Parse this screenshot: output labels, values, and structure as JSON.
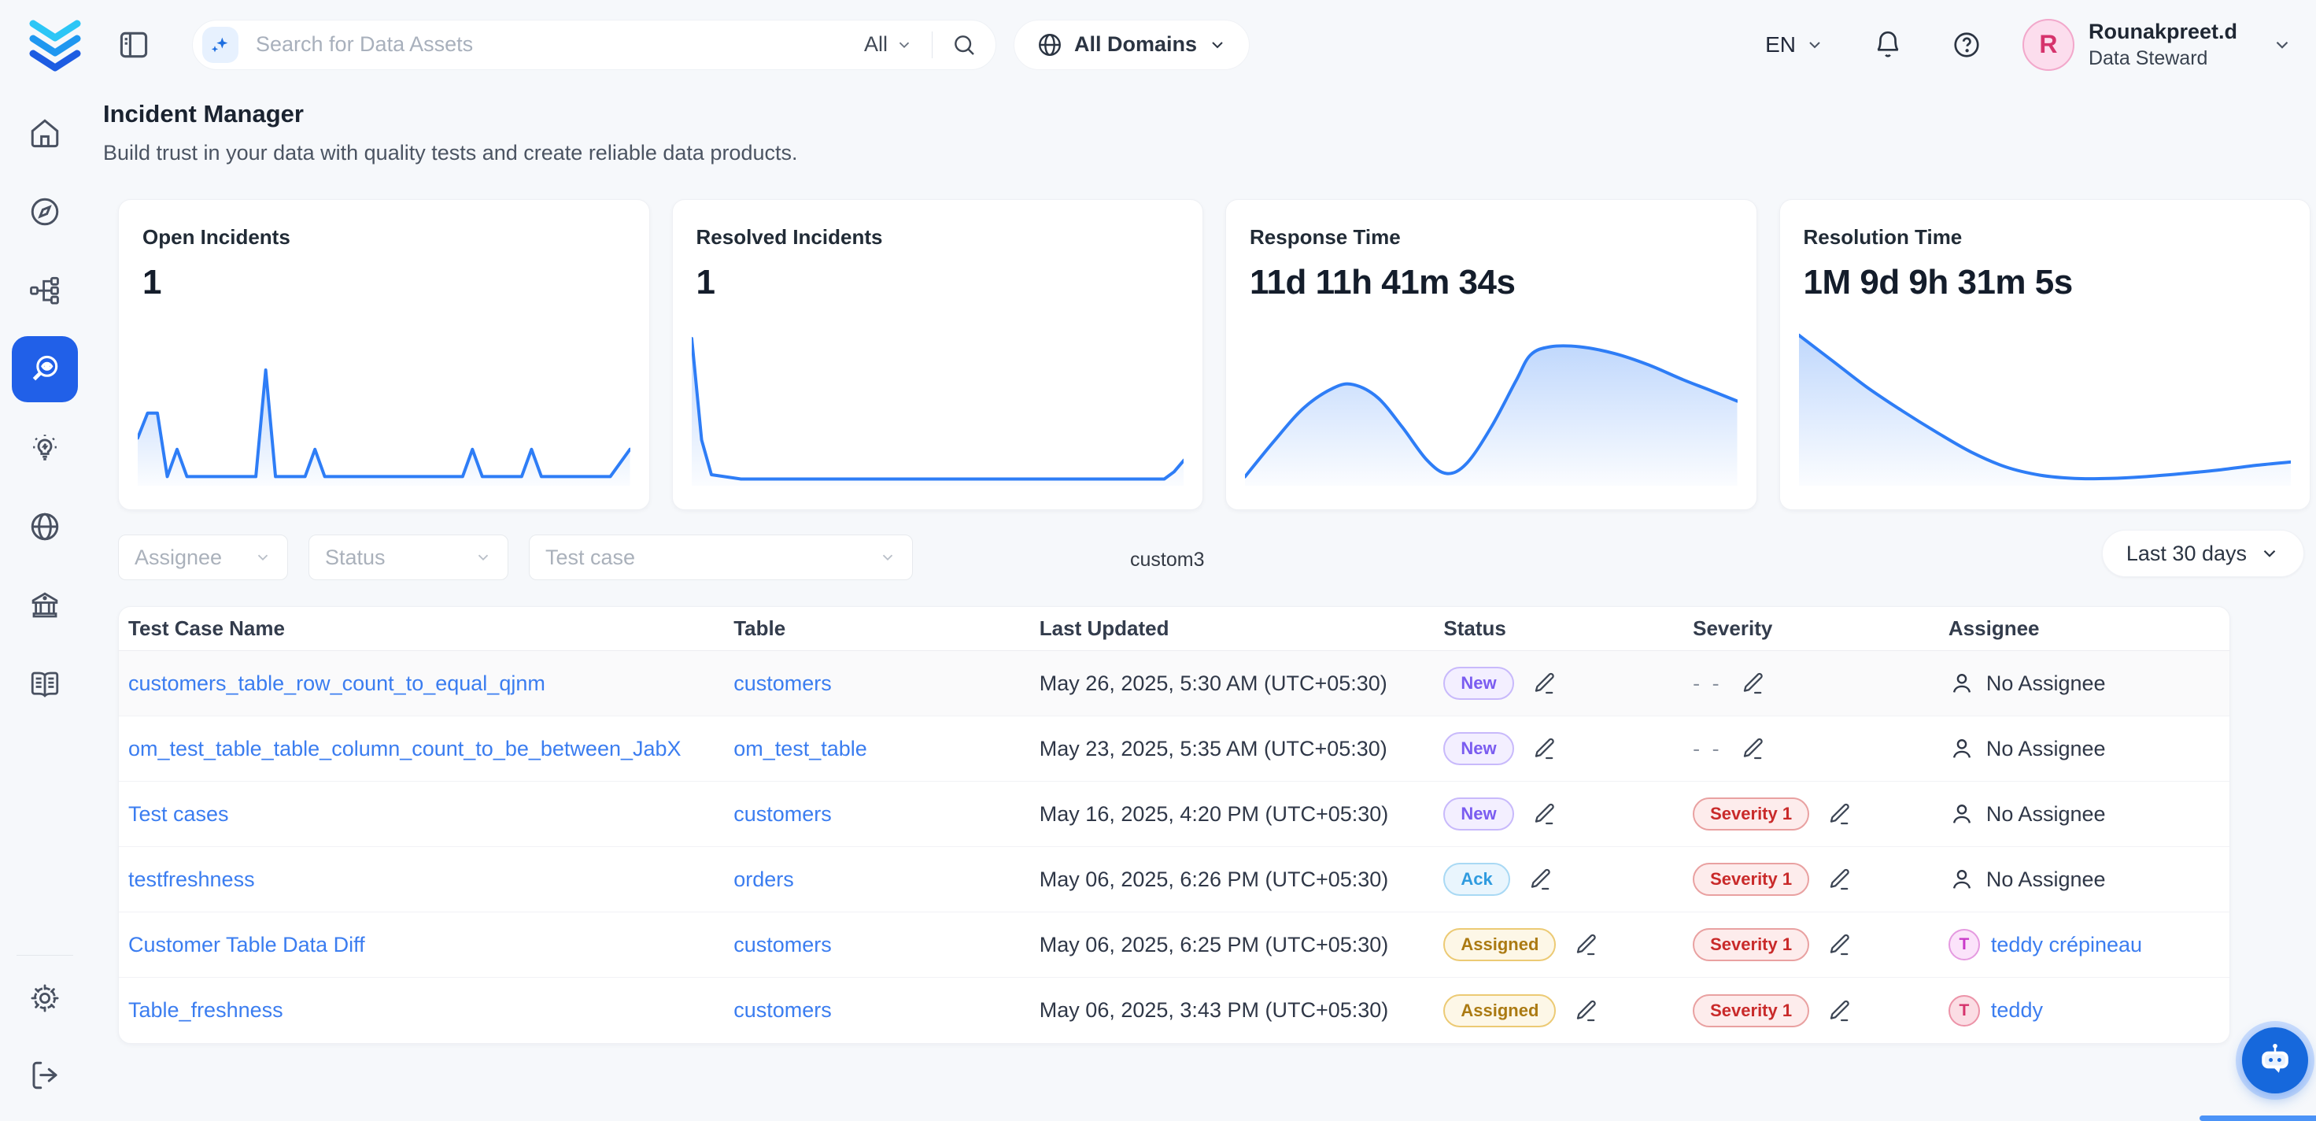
{
  "topbar": {
    "search": {
      "placeholder": "Search for Data Assets",
      "scope_label": "All"
    },
    "domains_button_label": "All Domains",
    "language_label": "EN",
    "user": {
      "initial": "R",
      "name": "Rounakpreet.d",
      "role": "Data Steward"
    }
  },
  "sidebar": {
    "items": [
      "home",
      "explore",
      "lineage",
      "observability",
      "insights",
      "domains",
      "governance",
      "glossary"
    ],
    "active_item": "observability",
    "footer_items": [
      "settings",
      "logout"
    ]
  },
  "page": {
    "title": "Incident Manager",
    "subtitle": "Build trust in your data with quality tests and create reliable data products."
  },
  "stat_cards": [
    {
      "label": "Open Incidents",
      "value": "1"
    },
    {
      "label": "Resolved Incidents",
      "value": "1"
    },
    {
      "label": "Response Time",
      "value": "11d 11h 41m 34s"
    },
    {
      "label": "Resolution Time",
      "value": "1M 9d 9h 31m 5s"
    }
  ],
  "chart_data": [
    {
      "type": "line",
      "title": "Open Incidents sparkline",
      "accent": "#2e7df6",
      "smooth": false,
      "ylim": [
        0,
        100
      ],
      "points": [
        [
          0,
          40
        ],
        [
          2,
          62
        ],
        [
          4,
          62
        ],
        [
          6,
          6
        ],
        [
          8,
          30
        ],
        [
          10,
          6
        ],
        [
          24,
          6
        ],
        [
          26,
          100
        ],
        [
          28,
          6
        ],
        [
          34,
          6
        ],
        [
          36,
          30
        ],
        [
          38,
          6
        ],
        [
          66,
          6
        ],
        [
          68,
          30
        ],
        [
          70,
          6
        ],
        [
          78,
          6
        ],
        [
          80,
          30
        ],
        [
          82,
          6
        ],
        [
          96,
          6
        ],
        [
          100,
          30
        ]
      ]
    },
    {
      "type": "line",
      "title": "Resolved Incidents sparkline",
      "accent": "#2e7df6",
      "smooth": false,
      "ylim": [
        0,
        100
      ],
      "points": [
        [
          0,
          100
        ],
        [
          2,
          30
        ],
        [
          4,
          6
        ],
        [
          10,
          3
        ],
        [
          90,
          3
        ],
        [
          96,
          3
        ],
        [
          98,
          8
        ],
        [
          100,
          16
        ]
      ]
    },
    {
      "type": "area",
      "title": "Response Time sparkline",
      "accent": "#2e7df6",
      "smooth": true,
      "ylim": [
        0,
        100
      ],
      "points": [
        [
          0,
          4
        ],
        [
          6,
          26
        ],
        [
          12,
          46
        ],
        [
          18,
          58
        ],
        [
          22,
          60
        ],
        [
          27,
          52
        ],
        [
          32,
          34
        ],
        [
          37,
          14
        ],
        [
          41,
          6
        ],
        [
          45,
          12
        ],
        [
          50,
          34
        ],
        [
          55,
          62
        ],
        [
          58,
          78
        ],
        [
          62,
          83
        ],
        [
          68,
          83
        ],
        [
          75,
          79
        ],
        [
          82,
          72
        ],
        [
          89,
          63
        ],
        [
          95,
          56
        ],
        [
          100,
          50
        ]
      ]
    },
    {
      "type": "area",
      "title": "Resolution Time sparkline",
      "accent": "#2e7df6",
      "smooth": true,
      "ylim": [
        0,
        100
      ],
      "points": [
        [
          0,
          90
        ],
        [
          7,
          74
        ],
        [
          14,
          58
        ],
        [
          21,
          44
        ],
        [
          28,
          31
        ],
        [
          35,
          19
        ],
        [
          42,
          10
        ],
        [
          49,
          5
        ],
        [
          56,
          3
        ],
        [
          63,
          3
        ],
        [
          70,
          4
        ],
        [
          78,
          6
        ],
        [
          85,
          8
        ],
        [
          93,
          11
        ],
        [
          100,
          13
        ]
      ]
    }
  ],
  "filters": {
    "assignee_placeholder": "Assignee",
    "status_placeholder": "Status",
    "test_case_placeholder": "Test case",
    "custom_text": "custom3",
    "date_range_label": "Last 30 days"
  },
  "table": {
    "columns": [
      "Test Case Name",
      "Table",
      "Last Updated",
      "Status",
      "Severity",
      "Assignee"
    ],
    "no_assignee_label": "No Assignee",
    "no_severity_label": "- -",
    "rows": [
      {
        "name": "customers_table_row_count_to_equal_qjnm",
        "table": "customers",
        "updated": "May 26, 2025, 5:30 AM (UTC+05:30)",
        "status": "New",
        "severity": null,
        "assignee": null,
        "highlight": true
      },
      {
        "name": "om_test_table_table_column_count_to_be_between_JabX",
        "table": "om_test_table",
        "updated": "May 23, 2025, 5:35 AM (UTC+05:30)",
        "status": "New",
        "severity": null,
        "assignee": null,
        "highlight": false
      },
      {
        "name": "Test cases",
        "table": "customers",
        "updated": "May 16, 2025, 4:20 PM (UTC+05:30)",
        "status": "New",
        "severity": "Severity 1",
        "assignee": null,
        "highlight": false
      },
      {
        "name": "testfreshness",
        "table": "orders",
        "updated": "May 06, 2025, 6:26 PM (UTC+05:30)",
        "status": "Ack",
        "severity": "Severity 1",
        "assignee": null,
        "highlight": false
      },
      {
        "name": "Customer Table Data Diff",
        "table": "customers",
        "updated": "May 06, 2025, 6:25 PM (UTC+05:30)",
        "status": "Assigned",
        "severity": "Severity 1",
        "assignee": {
          "name": "teddy crépineau",
          "initial": "T",
          "avatar_style": "magenta"
        },
        "highlight": false
      },
      {
        "name": "Table_freshness",
        "table": "customers",
        "updated": "May 06, 2025, 3:43 PM (UTC+05:30)",
        "status": "Assigned",
        "severity": "Severity 1",
        "assignee": {
          "name": "teddy",
          "initial": "T",
          "avatar_style": "pink"
        },
        "highlight": false
      }
    ]
  },
  "colors": {
    "accent_blue": "#2e7df6",
    "active_nav": "#2160e8",
    "status_new": "#7a5cf0",
    "status_ack": "#2f9bdf",
    "status_assigned": "#ab7a12",
    "severity_red": "#c92a2a",
    "link_blue": "#3b7df0"
  }
}
